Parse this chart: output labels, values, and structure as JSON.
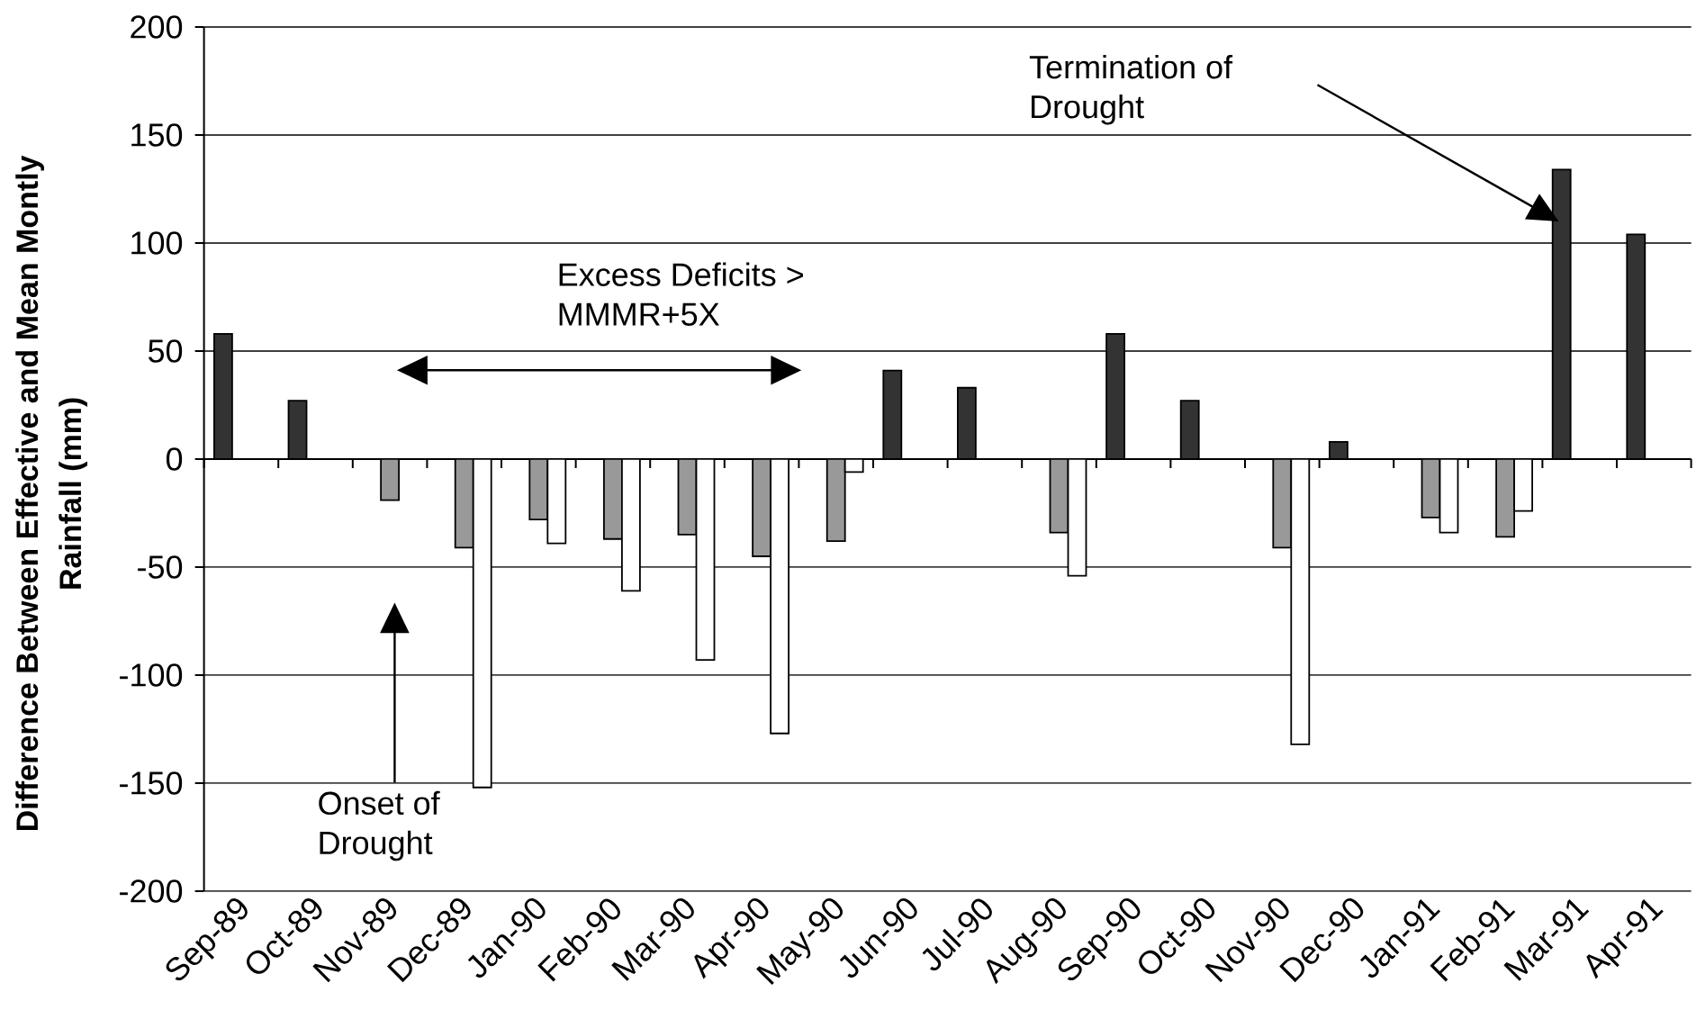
{
  "chart_data": {
    "type": "bar",
    "ylabel": "Difference Between Effective and Mean Montly Rainfall (mm)",
    "categories": [
      "Sep-89",
      "Oct-89",
      "Nov-89",
      "Dec-89",
      "Jan-90",
      "Feb-90",
      "Mar-90",
      "Apr-90",
      "May-90",
      "Jun-90",
      "Jul-90",
      "Aug-90",
      "Sep-90",
      "Oct-90",
      "Nov-90",
      "Dec-90",
      "Jan-91",
      "Feb-91",
      "Mar-91",
      "Apr-91"
    ],
    "series": [
      {
        "color": "#333333",
        "values": [
          58,
          27,
          null,
          null,
          null,
          null,
          null,
          null,
          null,
          41,
          33,
          null,
          58,
          27,
          null,
          8,
          null,
          null,
          134,
          104
        ]
      },
      {
        "color": "#999999",
        "values": [
          null,
          null,
          -19,
          -41,
          -28,
          -37,
          -35,
          -45,
          -38,
          null,
          null,
          -34,
          null,
          null,
          -41,
          null,
          -27,
          -36,
          null,
          null
        ]
      },
      {
        "color": "#ffffff",
        "values": [
          null,
          null,
          null,
          -152,
          -39,
          -61,
          -93,
          -127,
          -6,
          null,
          null,
          -54,
          null,
          null,
          -132,
          null,
          -34,
          -24,
          null,
          null
        ]
      }
    ],
    "ylim": [
      -200,
      200
    ],
    "yticks": [
      -200,
      -150,
      -100,
      -50,
      0,
      50,
      100,
      150,
      200
    ],
    "grid": "y",
    "annotations": [
      "Excess Deficits > MMMR+5X",
      "Termination of Drought",
      "Onset of Drought"
    ]
  }
}
